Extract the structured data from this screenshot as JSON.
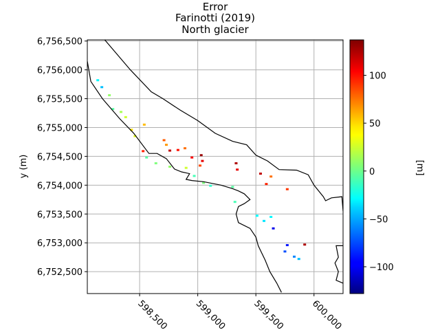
{
  "title_lines": [
    "Error",
    "Farinotti (2019)",
    "North glacier"
  ],
  "chart_data": {
    "type": "heatmap",
    "title": "Error\nFarinotti (2019)\nNorth glacier",
    "ylabel": "y (m)",
    "xlabel": "",
    "xlim": [
      598050,
      600250
    ],
    "ylim": [
      6752120,
      6756520
    ],
    "x_ticks": [
      598500,
      599000,
      599500,
      600000
    ],
    "x_tick_labels": [
      "598,500",
      "599,000",
      "599,500",
      "600,000"
    ],
    "y_ticks": [
      6752500,
      6753000,
      6753500,
      6754000,
      6754500,
      6755000,
      6755500,
      6756000,
      6756500
    ],
    "y_tick_labels": [
      "6,752,500",
      "6,753,000",
      "6,753,500",
      "6,754,000",
      "6,754,500",
      "6,755,000",
      "6,755,500",
      "6,756,000",
      "6,756,500"
    ],
    "grid": true,
    "colorbar": {
      "label": "[m]",
      "colormap": "jet",
      "range": [
        -128,
        137
      ],
      "ticks": [
        -100,
        -50,
        0,
        50,
        100
      ],
      "tick_labels": [
        "−100",
        "−50",
        "0",
        "50",
        "100"
      ]
    },
    "outline_color": "#000000",
    "upper_outline": [
      [
        598200,
        6756520
      ],
      [
        598420,
        6756000
      ],
      [
        598600,
        6755620
      ],
      [
        598700,
        6755500
      ],
      [
        598850,
        6755300
      ],
      [
        599000,
        6755120
      ],
      [
        599150,
        6754900
      ],
      [
        599300,
        6754760
      ],
      [
        599420,
        6754700
      ],
      [
        599500,
        6754520
      ],
      [
        599600,
        6754420
      ],
      [
        599700,
        6754270
      ],
      [
        599850,
        6754260
      ],
      [
        599950,
        6754180
      ],
      [
        600000,
        6754000
      ],
      [
        600080,
        6753800
      ],
      [
        600100,
        6753730
      ],
      [
        600150,
        6753780
      ],
      [
        600240,
        6753800
      ],
      [
        600250,
        6753550
      ]
    ],
    "lower_outline": [
      [
        598050,
        6756150
      ],
      [
        598080,
        6755800
      ],
      [
        598180,
        6755500
      ],
      [
        598330,
        6755150
      ],
      [
        598450,
        6754900
      ],
      [
        598580,
        6754550
      ],
      [
        598650,
        6754550
      ],
      [
        598730,
        6754460
      ],
      [
        598800,
        6754280
      ],
      [
        598860,
        6754230
      ],
      [
        598930,
        6754200
      ],
      [
        598900,
        6754100
      ],
      [
        598950,
        6754080
      ],
      [
        599050,
        6754060
      ],
      [
        599200,
        6754000
      ],
      [
        599300,
        6753940
      ],
      [
        599350,
        6753900
      ],
      [
        599400,
        6753850
      ],
      [
        599450,
        6753750
      ],
      [
        599400,
        6753680
      ],
      [
        599350,
        6753630
      ],
      [
        599330,
        6753500
      ],
      [
        599350,
        6753350
      ],
      [
        599450,
        6753250
      ],
      [
        599500,
        6753100
      ],
      [
        599520,
        6752950
      ],
      [
        599580,
        6752700
      ],
      [
        599620,
        6752500
      ],
      [
        599680,
        6752300
      ],
      [
        599720,
        6752140
      ]
    ],
    "right_edge_outline": [
      [
        600250,
        6752950
      ],
      [
        600190,
        6752950
      ],
      [
        600210,
        6752750
      ],
      [
        600180,
        6752650
      ],
      [
        600210,
        6752500
      ],
      [
        600190,
        6752350
      ],
      [
        600250,
        6752300
      ]
    ],
    "values": [
      {
        "x": 598140,
        "y": 6755820,
        "v": -30
      },
      {
        "x": 598175,
        "y": 6755700,
        "v": -45
      },
      {
        "x": 598240,
        "y": 6755560,
        "v": 10
      },
      {
        "x": 598270,
        "y": 6755320,
        "v": -5
      },
      {
        "x": 598340,
        "y": 6755270,
        "v": 15
      },
      {
        "x": 598380,
        "y": 6755180,
        "v": 25
      },
      {
        "x": 598430,
        "y": 6754960,
        "v": 45
      },
      {
        "x": 598460,
        "y": 6754850,
        "v": 30
      },
      {
        "x": 598540,
        "y": 6755050,
        "v": 55
      },
      {
        "x": 598530,
        "y": 6754590,
        "v": 95
      },
      {
        "x": 598560,
        "y": 6754480,
        "v": -5
      },
      {
        "x": 598640,
        "y": 6754380,
        "v": 5
      },
      {
        "x": 598710,
        "y": 6754780,
        "v": 80
      },
      {
        "x": 598730,
        "y": 6754700,
        "v": 65
      },
      {
        "x": 598760,
        "y": 6754600,
        "v": 120
      },
      {
        "x": 598830,
        "y": 6754610,
        "v": 100
      },
      {
        "x": 598890,
        "y": 6754640,
        "v": 75
      },
      {
        "x": 598760,
        "y": 6754320,
        "v": 10
      },
      {
        "x": 598900,
        "y": 6754300,
        "v": 25
      },
      {
        "x": 598950,
        "y": 6754480,
        "v": 105
      },
      {
        "x": 599030,
        "y": 6754520,
        "v": 130
      },
      {
        "x": 599040,
        "y": 6754420,
        "v": 110
      },
      {
        "x": 599020,
        "y": 6754340,
        "v": 85
      },
      {
        "x": 598970,
        "y": 6754160,
        "v": -10
      },
      {
        "x": 599050,
        "y": 6754040,
        "v": 5
      },
      {
        "x": 599110,
        "y": 6753990,
        "v": -15
      },
      {
        "x": 599300,
        "y": 6753970,
        "v": -5
      },
      {
        "x": 599320,
        "y": 6753710,
        "v": -10
      },
      {
        "x": 599330,
        "y": 6754380,
        "v": 125
      },
      {
        "x": 599340,
        "y": 6754270,
        "v": 110
      },
      {
        "x": 599540,
        "y": 6754200,
        "v": 120
      },
      {
        "x": 599630,
        "y": 6754150,
        "v": 75
      },
      {
        "x": 599590,
        "y": 6754020,
        "v": 95
      },
      {
        "x": 599770,
        "y": 6753930,
        "v": 90
      },
      {
        "x": 599510,
        "y": 6753470,
        "v": -30
      },
      {
        "x": 599570,
        "y": 6753380,
        "v": -35
      },
      {
        "x": 599630,
        "y": 6753450,
        "v": -30
      },
      {
        "x": 599650,
        "y": 6753250,
        "v": -100
      },
      {
        "x": 599750,
        "y": 6752850,
        "v": -75
      },
      {
        "x": 599770,
        "y": 6752960,
        "v": -90
      },
      {
        "x": 599830,
        "y": 6752760,
        "v": -60
      },
      {
        "x": 599870,
        "y": 6752720,
        "v": -45
      },
      {
        "x": 599920,
        "y": 6752970,
        "v": 125
      }
    ]
  }
}
